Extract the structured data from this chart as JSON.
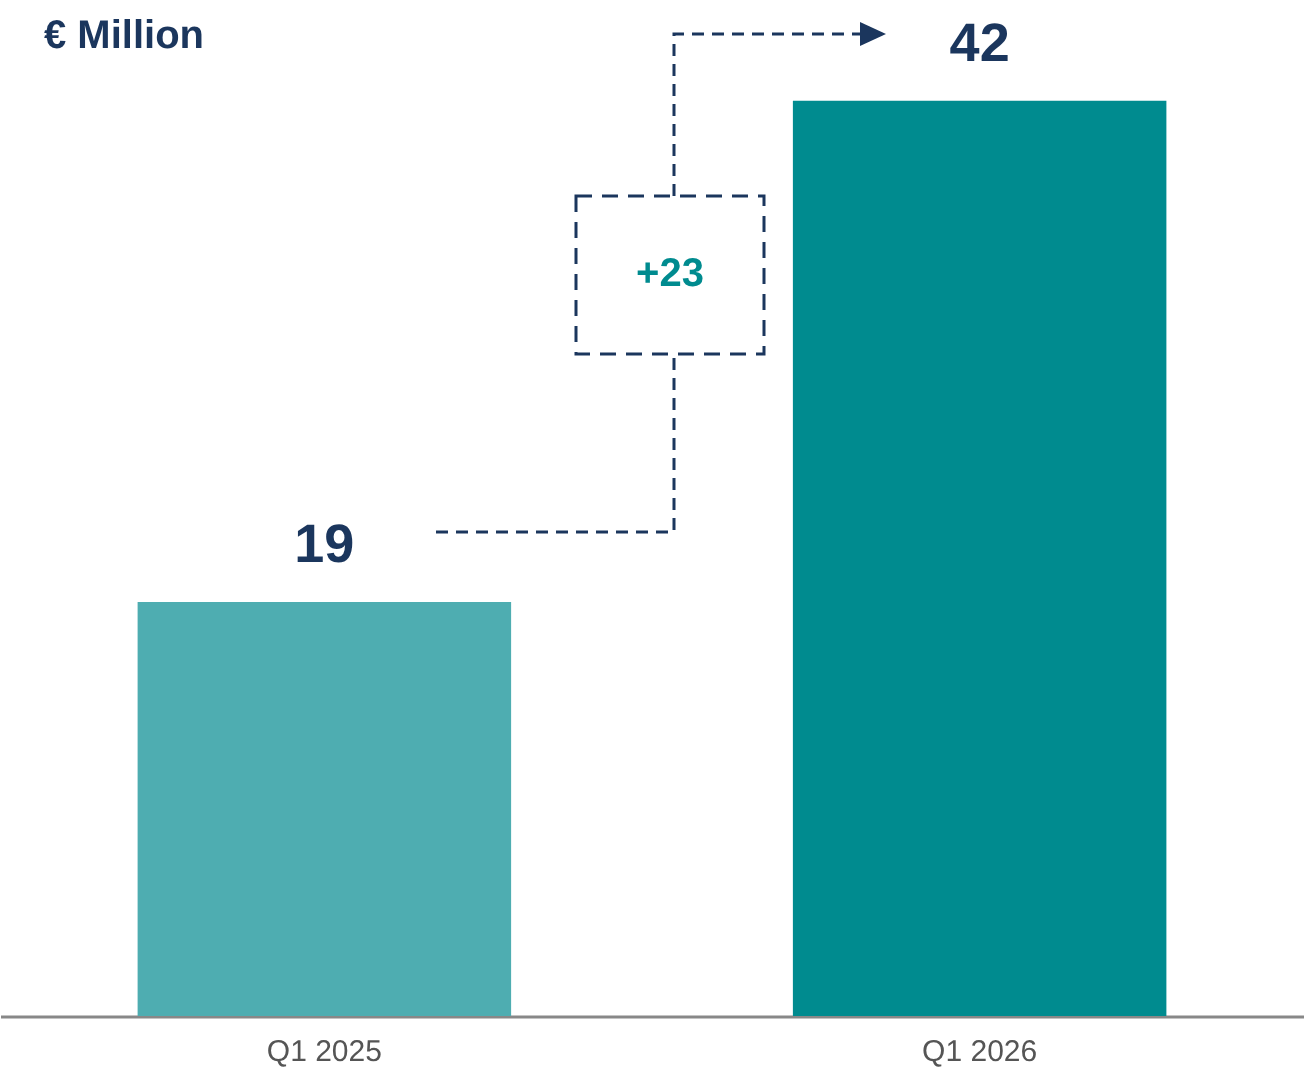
{
  "chart_data": {
    "type": "bar",
    "title": "€ Million",
    "categories": [
      "Q1 2025",
      "Q1 2026"
    ],
    "values": [
      19,
      42
    ],
    "colors": [
      "#4eadb1",
      "#008b8f"
    ],
    "data_labels": true,
    "annotations": [
      "+23"
    ]
  }
}
